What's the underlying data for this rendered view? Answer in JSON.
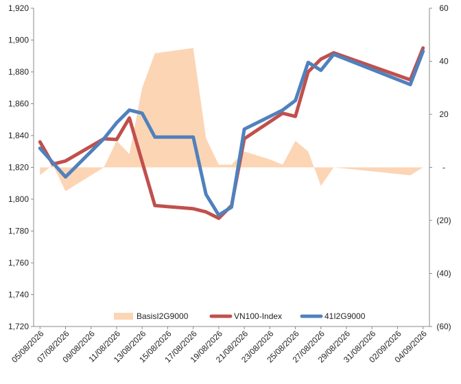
{
  "chart_data": {
    "type": "line",
    "title": "",
    "categories": [
      "05/08/2026",
      "06/08/2026",
      "07/08/2026",
      "08/08/2026",
      "09/08/2026",
      "10/08/2026",
      "11/08/2026",
      "12/08/2026",
      "13/08/2026",
      "14/08/2026",
      "15/08/2026",
      "16/08/2026",
      "17/08/2026",
      "18/08/2026",
      "19/08/2026",
      "20/08/2026",
      "21/08/2026",
      "22/08/2026",
      "23/08/2026",
      "24/08/2026",
      "25/08/2026",
      "26/08/2026",
      "27/08/2026",
      "28/08/2026",
      "29/08/2026",
      "30/08/2026",
      "31/08/2026",
      "01/09/2026",
      "02/09/2026",
      "03/09/2026",
      "04/09/2026"
    ],
    "x_tick_labels": [
      "05/08/2026",
      "07/08/2026",
      "09/08/2026",
      "11/08/2026",
      "13/08/2026",
      "15/08/2026",
      "17/08/2026",
      "19/08/2026",
      "21/08/2026",
      "23/08/2026",
      "25/08/2026",
      "27/08/2026",
      "29/08/2026",
      "31/08/2026",
      "02/09/2026",
      "04/09/2026"
    ],
    "y_left": {
      "min": 1720,
      "max": 1920,
      "step": 20,
      "tick_labels": [
        "1,720",
        "1,740",
        "1,760",
        "1,780",
        "1,800",
        "1,820",
        "1,840",
        "1,860",
        "1,880",
        "1,900",
        "1,920"
      ]
    },
    "y_right": {
      "min": -60,
      "max": 60,
      "step": 20,
      "tick_labels": [
        "(60)",
        "(40)",
        "(20)",
        "-",
        "20",
        "40",
        "60"
      ]
    },
    "series": [
      {
        "name": "BasisI2G9000",
        "kind": "area",
        "axis": "right",
        "color": "#fcd5b5",
        "points": [
          [
            "05/08/2026",
            -3
          ],
          [
            "06/08/2026",
            1
          ],
          [
            "07/08/2026",
            -9
          ],
          [
            "08/08/2026",
            -6
          ],
          [
            "10/08/2026",
            0
          ],
          [
            "11/08/2026",
            10
          ],
          [
            "12/08/2026",
            5
          ],
          [
            "13/08/2026",
            30
          ],
          [
            "14/08/2026",
            43
          ],
          [
            "17/08/2026",
            45
          ],
          [
            "18/08/2026",
            11
          ],
          [
            "19/08/2026",
            1
          ],
          [
            "20/08/2026",
            1
          ],
          [
            "21/08/2026",
            6
          ],
          [
            "23/08/2026",
            3
          ],
          [
            "24/08/2026",
            1
          ],
          [
            "25/08/2026",
            10
          ],
          [
            "26/08/2026",
            6
          ],
          [
            "27/08/2026",
            -7
          ],
          [
            "28/08/2026",
            0
          ],
          [
            "03/09/2026",
            -3
          ],
          [
            "04/09/2026",
            0
          ]
        ]
      },
      {
        "name": "VN100-Index",
        "kind": "line",
        "axis": "left",
        "color": "#c0504d",
        "points": [
          [
            "05/08/2026",
            1836
          ],
          [
            "06/08/2026",
            1822
          ],
          [
            "07/08/2026",
            1824
          ],
          [
            "10/08/2026",
            1838
          ],
          [
            "11/08/2026",
            1837.5
          ],
          [
            "12/08/2026",
            1851
          ],
          [
            "14/08/2026",
            1796
          ],
          [
            "17/08/2026",
            1794
          ],
          [
            "18/08/2026",
            1792
          ],
          [
            "19/08/2026",
            1788
          ],
          [
            "20/08/2026",
            1796
          ],
          [
            "21/08/2026",
            1838
          ],
          [
            "24/08/2026",
            1854
          ],
          [
            "25/08/2026",
            1852
          ],
          [
            "26/08/2026",
            1880
          ],
          [
            "27/08/2026",
            1888
          ],
          [
            "28/08/2026",
            1892
          ],
          [
            "03/09/2026",
            1875
          ],
          [
            "04/09/2026",
            1895
          ]
        ]
      },
      {
        "name": "41I2G9000",
        "kind": "line",
        "axis": "left",
        "color": "#4f81bd",
        "points": [
          [
            "05/08/2026",
            1832
          ],
          [
            "07/08/2026",
            1814
          ],
          [
            "10/08/2026",
            1838
          ],
          [
            "11/08/2026",
            1848
          ],
          [
            "12/08/2026",
            1856
          ],
          [
            "13/08/2026",
            1854
          ],
          [
            "14/08/2026",
            1839
          ],
          [
            "17/08/2026",
            1839
          ],
          [
            "18/08/2026",
            1803
          ],
          [
            "19/08/2026",
            1790
          ],
          [
            "20/08/2026",
            1795
          ],
          [
            "21/08/2026",
            1844
          ],
          [
            "24/08/2026",
            1856
          ],
          [
            "25/08/2026",
            1862
          ],
          [
            "26/08/2026",
            1886
          ],
          [
            "27/08/2026",
            1881
          ],
          [
            "28/08/2026",
            1891
          ],
          [
            "03/09/2026",
            1872
          ],
          [
            "04/09/2026",
            1893
          ]
        ]
      }
    ],
    "grid": false,
    "legend_position": "bottom"
  }
}
